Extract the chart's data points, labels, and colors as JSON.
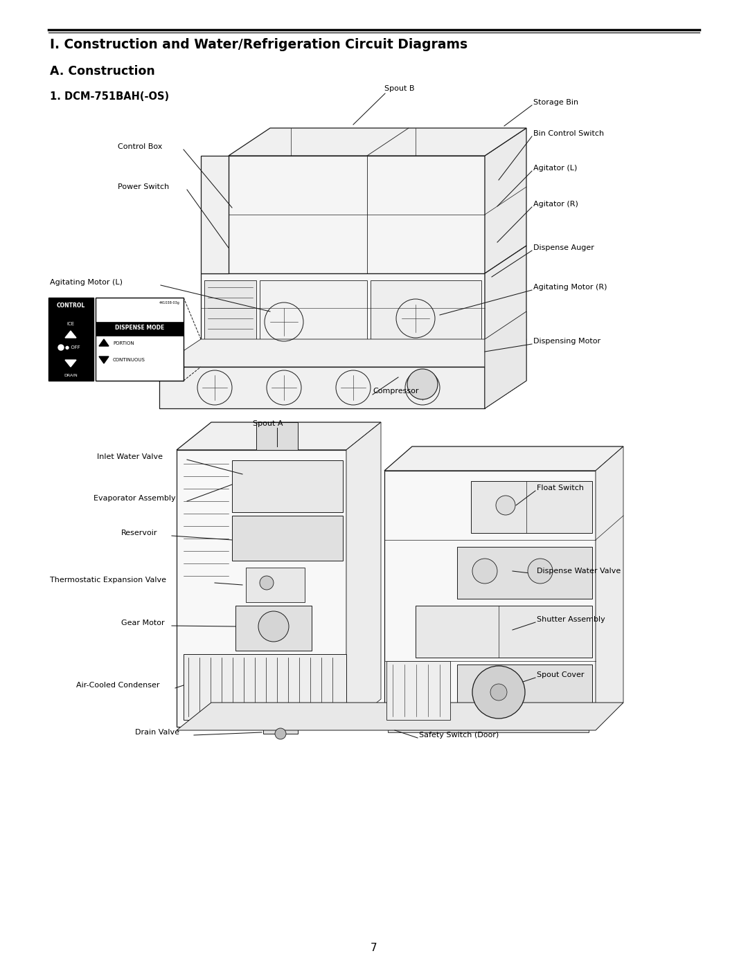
{
  "bg_color": "#ffffff",
  "page_number": "7",
  "section_title": "I. Construction and Water/Refrigeration Circuit Diagrams",
  "subsection_a": "A. Construction",
  "subsection_1": "1. DCM-751BAH(-OS)",
  "font_color": "#000000",
  "line_color": "#000000"
}
